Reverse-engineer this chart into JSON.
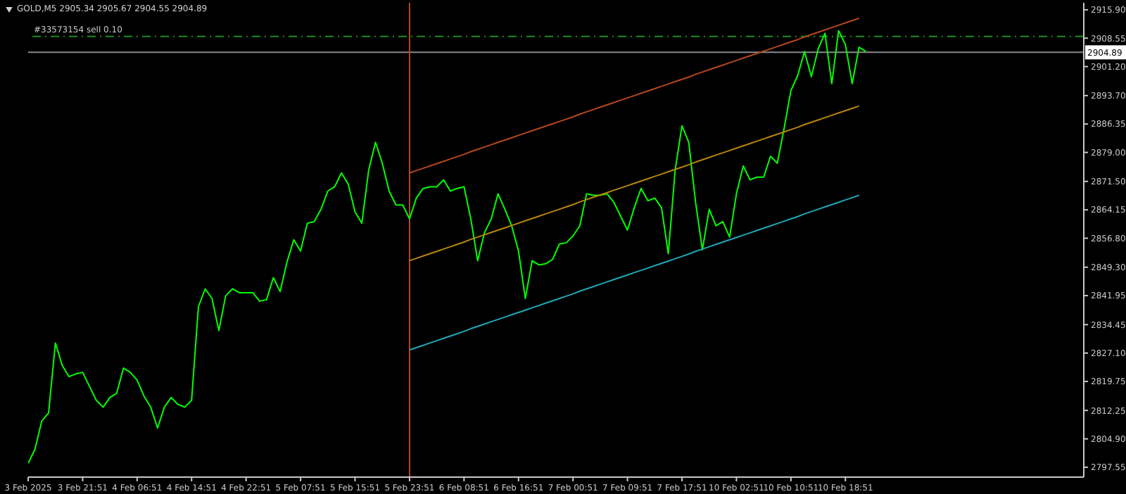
{
  "chart_data": {
    "type": "line",
    "title": "GOLD,M5  2905.34 2905.67 2904.55 2904.89",
    "grid": false,
    "legend": false,
    "marker": "none",
    "categories": [
      "3 Feb 2025",
      null,
      null,
      null,
      null,
      null,
      null,
      null,
      "3 Feb 21:51",
      null,
      null,
      null,
      null,
      null,
      null,
      null,
      "4 Feb 06:51",
      null,
      null,
      null,
      null,
      null,
      null,
      null,
      "4 Feb 14:51",
      null,
      null,
      null,
      null,
      null,
      null,
      null,
      "4 Feb 22:51",
      null,
      null,
      null,
      null,
      null,
      null,
      null,
      "5 Feb 07:51",
      null,
      null,
      null,
      null,
      null,
      null,
      null,
      "5 Feb 15:51",
      null,
      null,
      null,
      null,
      null,
      null,
      null,
      "5 Feb 23:51",
      null,
      null,
      null,
      null,
      null,
      null,
      null,
      "6 Feb 08:51",
      null,
      null,
      null,
      null,
      null,
      null,
      null,
      "6 Feb 16:51",
      null,
      null,
      null,
      null,
      null,
      null,
      null,
      "7 Feb 00:51",
      null,
      null,
      null,
      null,
      null,
      null,
      null,
      "7 Feb 09:51",
      null,
      null,
      null,
      null,
      null,
      null,
      null,
      "7 Feb 17:51",
      null,
      null,
      null,
      null,
      null,
      null,
      null,
      "10 Feb 02:51",
      null,
      null,
      null,
      null,
      null,
      null,
      null,
      "10 Feb 10:51",
      null,
      null,
      null,
      null,
      null,
      null,
      null,
      "10 Feb 18:51",
      null,
      null,
      null,
      null,
      null,
      null,
      null,
      null,
      null,
      null,
      null,
      null,
      null,
      null,
      null,
      null,
      null,
      null,
      null,
      null,
      null,
      null,
      null,
      null,
      null,
      null,
      null,
      null,
      null,
      null,
      null,
      null,
      null,
      null,
      null
    ],
    "ylim": [
      2795.0,
      2917.7
    ],
    "yticks": [
      {
        "value": 2915.9,
        "label": "2915.90"
      },
      {
        "value": 2908.55,
        "label": "2908.55"
      },
      {
        "value": 2901.2,
        "label": "2901.20"
      },
      {
        "value": 2893.7,
        "label": "2893.70"
      },
      {
        "value": 2886.35,
        "label": "2886.35"
      },
      {
        "value": 2879.0,
        "label": "2879.00"
      },
      {
        "value": 2871.5,
        "label": "2871.50"
      },
      {
        "value": 2864.15,
        "label": "2864.15"
      },
      {
        "value": 2856.8,
        "label": "2856.80"
      },
      {
        "value": 2849.3,
        "label": "2849.30"
      },
      {
        "value": 2841.95,
        "label": "2841.95"
      },
      {
        "value": 2834.45,
        "label": "2834.45"
      },
      {
        "value": 2827.1,
        "label": "2827.10"
      },
      {
        "value": 2819.75,
        "label": "2819.75"
      },
      {
        "value": 2812.25,
        "label": "2812.25"
      },
      {
        "value": 2804.9,
        "label": "2804.90"
      },
      {
        "value": 2797.55,
        "label": "2797.55"
      }
    ],
    "series": [
      {
        "color": "#00ff00",
        "values": [
          2798.6,
          2802.2,
          2809.5,
          2811.6,
          2829.7,
          2823.9,
          2821.0,
          2821.7,
          2822.1,
          2818.5,
          2814.9,
          2813.1,
          2815.6,
          2816.7,
          2823.2,
          2822.1,
          2820.1,
          2816.0,
          2813.1,
          2807.7,
          2813.1,
          2815.6,
          2813.8,
          2813.1,
          2814.9,
          2839.1,
          2843.7,
          2841.2,
          2832.9,
          2841.9,
          2843.7,
          2842.7,
          2842.7,
          2842.7,
          2840.5,
          2840.9,
          2846.6,
          2843.0,
          2850.6,
          2856.4,
          2853.5,
          2860.7,
          2861.1,
          2864.3,
          2869.0,
          2870.1,
          2873.7,
          2870.8,
          2863.6,
          2860.7,
          2874.4,
          2881.6,
          2876.2,
          2869.0,
          2865.4,
          2865.4,
          2861.8,
          2867.2,
          2869.7,
          2870.1,
          2870.1,
          2871.9,
          2869.0,
          2869.7,
          2870.1,
          2861.8,
          2851.0,
          2858.2,
          2861.8,
          2868.3,
          2864.3,
          2860.0,
          2853.5,
          2841.2,
          2851.0,
          2849.9,
          2850.2,
          2851.3,
          2855.3,
          2855.6,
          2857.4,
          2860.0,
          2868.3,
          2867.9,
          2867.9,
          2868.3,
          2866.1,
          2862.5,
          2858.9,
          2864.7,
          2869.7,
          2866.5,
          2867.2,
          2864.7,
          2852.8,
          2874.4,
          2885.9,
          2881.6,
          2866.1,
          2853.8,
          2864.3,
          2860.0,
          2861.1,
          2857.1,
          2868.3,
          2875.5,
          2871.9,
          2872.6,
          2872.6,
          2878.0,
          2876.2,
          2885.2,
          2895.0,
          2898.9,
          2905.1,
          2898.6,
          2905.8,
          2909.8,
          2896.8,
          2910.5,
          2906.9,
          2896.8,
          2906.2,
          2905.1,
          null,
          null,
          null,
          null,
          null,
          null,
          null,
          null,
          null,
          null,
          null,
          null,
          null,
          null,
          null,
          null,
          null,
          null,
          null,
          null,
          null,
          null,
          null,
          null,
          null,
          null,
          null,
          null,
          null,
          null,
          null,
          null
        ]
      },
      {
        "color": "#b5471f",
        "values": [
          null,
          null,
          null,
          null,
          null,
          null,
          null,
          null,
          null,
          null,
          null,
          null,
          null,
          null,
          null,
          null,
          null,
          null,
          null,
          null,
          null,
          null,
          null,
          null,
          null,
          null,
          null,
          null,
          null,
          null,
          null,
          null,
          null,
          null,
          null,
          null,
          null,
          null,
          null,
          null,
          null,
          null,
          null,
          null,
          null,
          null,
          null,
          null,
          null,
          null,
          null,
          null,
          null,
          null,
          null,
          null,
          2873.7,
          2874.3,
          2874.9,
          2875.5,
          2876.1,
          2876.7,
          2877.3,
          2877.9,
          2878.5,
          2879.2,
          2879.8,
          2880.4,
          2881.0,
          2881.6,
          2882.2,
          2882.8,
          2883.4,
          2884.0,
          2884.6,
          2885.2,
          2885.8,
          2886.4,
          2887.0,
          2887.6,
          2888.2,
          2888.9,
          2889.5,
          2890.1,
          2890.7,
          2891.3,
          2891.9,
          2892.5,
          2893.1,
          2893.7,
          2894.3,
          2894.9,
          2895.5,
          2896.1,
          2896.7,
          2897.3,
          2897.9,
          2898.5,
          2899.2,
          2899.8,
          2900.4,
          2901.0,
          2901.6,
          2902.2,
          2902.8,
          2903.4,
          2904.0,
          2904.6,
          2905.2,
          2905.8,
          2906.4,
          2907.0,
          2907.6,
          2908.2,
          2908.9,
          2909.5,
          2910.1,
          2910.7,
          2911.3,
          2911.9,
          2912.5,
          2913.1,
          2913.7,
          null,
          null,
          null,
          null,
          null,
          null,
          null,
          null,
          null,
          null,
          null,
          null,
          null,
          null,
          null,
          null,
          null,
          null,
          null,
          null,
          null,
          null,
          null,
          null,
          null,
          null,
          null,
          null,
          null,
          null,
          null,
          null,
          null
        ]
      },
      {
        "color": "#b8860b",
        "values": [
          null,
          null,
          null,
          null,
          null,
          null,
          null,
          null,
          null,
          null,
          null,
          null,
          null,
          null,
          null,
          null,
          null,
          null,
          null,
          null,
          null,
          null,
          null,
          null,
          null,
          null,
          null,
          null,
          null,
          null,
          null,
          null,
          null,
          null,
          null,
          null,
          null,
          null,
          null,
          null,
          null,
          null,
          null,
          null,
          null,
          null,
          null,
          null,
          null,
          null,
          null,
          null,
          null,
          null,
          null,
          null,
          2851.0,
          2851.6,
          2852.2,
          2852.8,
          2853.4,
          2854.0,
          2854.6,
          2855.2,
          2855.8,
          2856.5,
          2857.1,
          2857.7,
          2858.3,
          2858.9,
          2859.5,
          2860.1,
          2860.7,
          2861.3,
          2861.9,
          2862.5,
          2863.1,
          2863.7,
          2864.3,
          2864.9,
          2865.5,
          2866.2,
          2866.8,
          2867.4,
          2868.0,
          2868.6,
          2869.2,
          2869.8,
          2870.4,
          2871.0,
          2871.6,
          2872.2,
          2872.8,
          2873.4,
          2874.0,
          2874.6,
          2875.2,
          2875.8,
          2876.5,
          2877.1,
          2877.7,
          2878.3,
          2878.9,
          2879.5,
          2880.1,
          2880.7,
          2881.3,
          2881.9,
          2882.5,
          2883.1,
          2883.7,
          2884.3,
          2884.9,
          2885.5,
          2886.2,
          2886.8,
          2887.4,
          2888.0,
          2888.6,
          2889.2,
          2889.8,
          2890.4,
          2891.0,
          null,
          null,
          null,
          null,
          null,
          null,
          null,
          null,
          null,
          null,
          null,
          null,
          null,
          null,
          null,
          null,
          null,
          null,
          null,
          null,
          null,
          null,
          null,
          null,
          null,
          null,
          null,
          null,
          null,
          null,
          null,
          null,
          null
        ]
      },
      {
        "color": "#1fa8b8",
        "values": [
          null,
          null,
          null,
          null,
          null,
          null,
          null,
          null,
          null,
          null,
          null,
          null,
          null,
          null,
          null,
          null,
          null,
          null,
          null,
          null,
          null,
          null,
          null,
          null,
          null,
          null,
          null,
          null,
          null,
          null,
          null,
          null,
          null,
          null,
          null,
          null,
          null,
          null,
          null,
          null,
          null,
          null,
          null,
          null,
          null,
          null,
          null,
          null,
          null,
          null,
          null,
          null,
          null,
          null,
          null,
          null,
          2827.9,
          2828.5,
          2829.1,
          2829.7,
          2830.3,
          2830.9,
          2831.5,
          2832.1,
          2832.7,
          2833.4,
          2834.0,
          2834.6,
          2835.2,
          2835.8,
          2836.4,
          2837.0,
          2837.6,
          2838.2,
          2838.8,
          2839.4,
          2840.0,
          2840.6,
          2841.2,
          2841.8,
          2842.4,
          2843.1,
          2843.7,
          2844.3,
          2844.9,
          2845.5,
          2846.1,
          2846.7,
          2847.3,
          2847.9,
          2848.5,
          2849.1,
          2849.7,
          2850.3,
          2850.9,
          2851.5,
          2852.1,
          2852.7,
          2853.4,
          2854.0,
          2854.6,
          2855.2,
          2855.8,
          2856.4,
          2857.0,
          2857.6,
          2858.2,
          2858.8,
          2859.4,
          2860.0,
          2860.6,
          2861.2,
          2861.8,
          2862.4,
          2863.1,
          2863.7,
          2864.3,
          2864.9,
          2865.5,
          2866.1,
          2866.7,
          2867.3,
          2867.9,
          null,
          null,
          null,
          null,
          null,
          null,
          null,
          null,
          null,
          null,
          null,
          null,
          null,
          null,
          null,
          null,
          null,
          null,
          null,
          null,
          null,
          null,
          null,
          null,
          null,
          null,
          null,
          null,
          null,
          null,
          null,
          null,
          null
        ]
      }
    ],
    "ref_lines": [
      {
        "axis": "y",
        "value": 2909.0,
        "label": "#33573154 sell 0.10",
        "color": "#1e8c1e",
        "line_style": "dashed"
      },
      {
        "axis": "y",
        "value": 2904.89,
        "label": "2904.89",
        "color": "#8a8a8a",
        "line_style": "solid"
      },
      {
        "axis": "x",
        "value": "5 Feb 23:51",
        "color": "#b5471f",
        "line_style": "solid"
      }
    ]
  }
}
